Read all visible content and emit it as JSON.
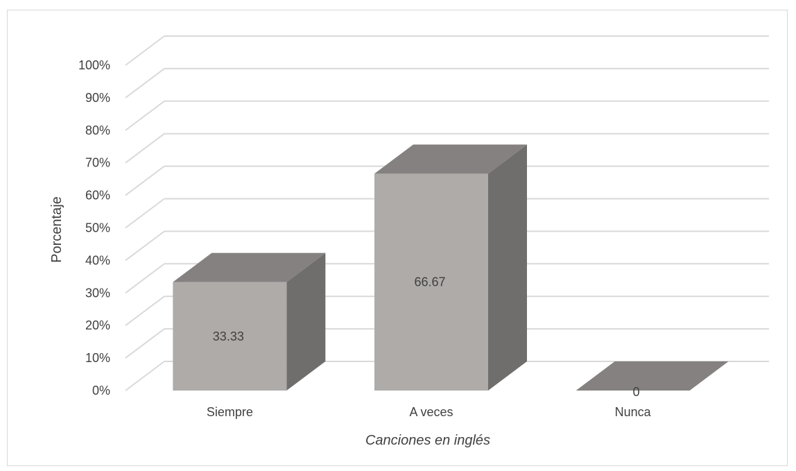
{
  "chart_data": {
    "type": "bar",
    "categories": [
      "Siempre",
      "A veces",
      "Nunca"
    ],
    "values": [
      33.33,
      66.67,
      0
    ],
    "data_labels": [
      "33.33",
      "66.67",
      "0"
    ],
    "title": "",
    "xlabel": "Canciones en inglés",
    "ylabel": "Porcentaje",
    "ylim": [
      0,
      100
    ],
    "yticks": [
      "0%",
      "10%",
      "20%",
      "30%",
      "40%",
      "50%",
      "60%",
      "70%",
      "80%",
      "90%",
      "100%"
    ],
    "grid": true,
    "three_d": true,
    "legend": "none",
    "colors": {
      "bar_front": "#aeaba9",
      "bar_top": "#858180",
      "bar_side": "#706e6d",
      "grid": "#d9d9d9",
      "text": "#404040"
    }
  }
}
